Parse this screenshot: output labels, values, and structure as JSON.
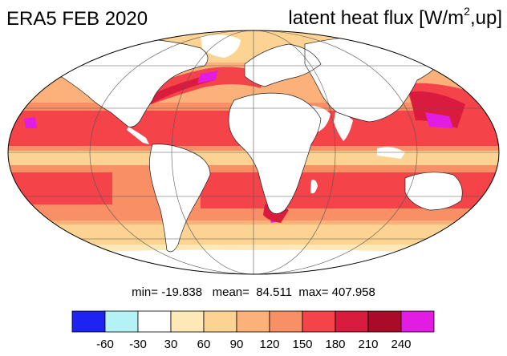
{
  "header": {
    "dataset_label": "ERA5 FEB 2020",
    "variable_label": "latent heat flux [W/m",
    "variable_unit_sup": "2",
    "variable_suffix": ",up]"
  },
  "stats": {
    "min_label": "min=",
    "min_value": "-19.838",
    "mean_label": "mean=",
    "mean_value": "84.511",
    "max_label": "max=",
    "max_value": "407.958"
  },
  "colorbar": {
    "colors": [
      "#1f23f0",
      "#b4f2f5",
      "#ffffff",
      "#fde9b8",
      "#fcd392",
      "#fbb179",
      "#f98f65",
      "#f5434a",
      "#d91c3e",
      "#a90c28",
      "#e21ce2"
    ],
    "tick_labels": [
      "-60",
      "-30",
      "30",
      "60",
      "90",
      "120",
      "150",
      "180",
      "210",
      "240"
    ]
  },
  "map": {
    "projection": "Mollweide",
    "palette": {
      "ocean_low": "#fbb179",
      "ocean_mid": "#f98f65",
      "ocean_high": "#f5434a",
      "ocean_peak": "#d91c3e",
      "extreme": "#e21ce2",
      "land": "#ffffff",
      "land_fringe": "#fde9b8"
    }
  }
}
